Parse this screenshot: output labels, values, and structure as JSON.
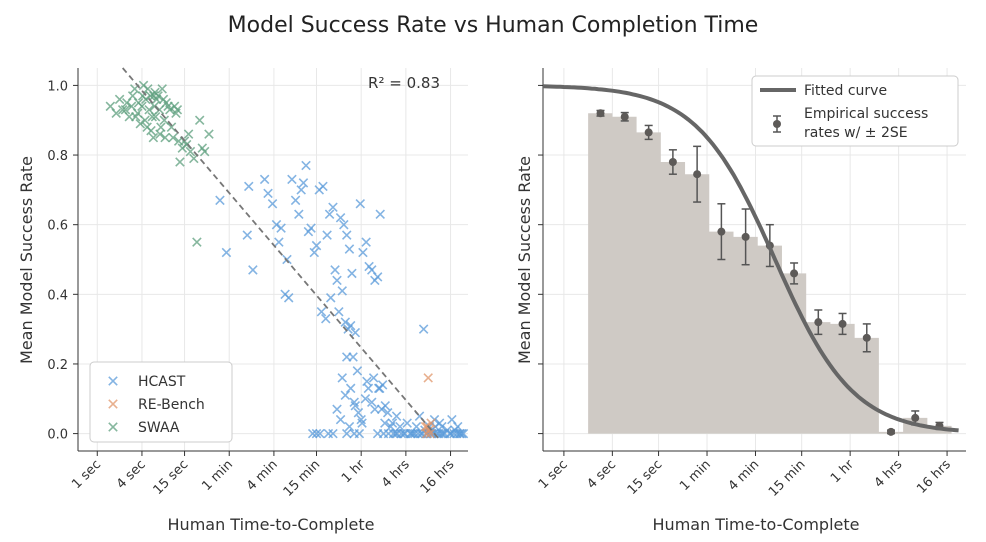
{
  "chart_data": [
    {
      "type": "scatter",
      "suptitle": "Model Success Rate vs Human Completion Time",
      "xlabel": "Human Time-to-Complete",
      "ylabel": "Mean Model Success Rate",
      "x_scale": "log2_seconds",
      "xlim_seconds": [
        0.55,
        99000
      ],
      "ylim": [
        -0.05,
        1.05
      ],
      "x_ticks": [
        {
          "label": "1 sec",
          "seconds": 1
        },
        {
          "label": "4 sec",
          "seconds": 4
        },
        {
          "label": "15 sec",
          "seconds": 15
        },
        {
          "label": "1 min",
          "seconds": 60
        },
        {
          "label": "4 min",
          "seconds": 240
        },
        {
          "label": "15 min",
          "seconds": 900
        },
        {
          "label": "1 hr",
          "seconds": 3600
        },
        {
          "label": "4 hrs",
          "seconds": 14400
        },
        {
          "label": "16 hrs",
          "seconds": 57600
        }
      ],
      "y_ticks": [
        "0.0",
        "0.2",
        "0.4",
        "0.6",
        "0.8",
        "1.0"
      ],
      "y_tick_values": [
        0,
        0.2,
        0.4,
        0.6,
        0.8,
        1.0
      ],
      "r2_label": "R² = 0.83",
      "fit_line": {
        "seconds": [
          2.2,
          42000
        ],
        "y": [
          1.05,
          -0.02
        ]
      },
      "legend_position": "lower-left",
      "series": [
        {
          "name": "HCAST",
          "color": "#5b9bd9",
          "points": [
            [
              45,
              0.67
            ],
            [
              55,
              0.52
            ],
            [
              105,
              0.57
            ],
            [
              125,
              0.47
            ],
            [
              110,
              0.71
            ],
            [
              180,
              0.73
            ],
            [
              200,
              0.69
            ],
            [
              230,
              0.66
            ],
            [
              260,
              0.6
            ],
            [
              280,
              0.55
            ],
            [
              300,
              0.59
            ],
            [
              340,
              0.4
            ],
            [
              380,
              0.39
            ],
            [
              360,
              0.5
            ],
            [
              420,
              0.73
            ],
            [
              470,
              0.67
            ],
            [
              520,
              0.63
            ],
            [
              560,
              0.7
            ],
            [
              600,
              0.72
            ],
            [
              650,
              0.77
            ],
            [
              700,
              0.58
            ],
            [
              760,
              0.59
            ],
            [
              840,
              0.52
            ],
            [
              900,
              0.54
            ],
            [
              980,
              0.7
            ],
            [
              1100,
              0.71
            ],
            [
              1250,
              0.57
            ],
            [
              1350,
              0.63
            ],
            [
              1500,
              0.65
            ],
            [
              1700,
              0.44
            ],
            [
              1900,
              0.62
            ],
            [
              2100,
              0.6
            ],
            [
              2300,
              0.57
            ],
            [
              2500,
              0.53
            ],
            [
              2700,
              0.46
            ],
            [
              1050,
              0.35
            ],
            [
              1200,
              0.33
            ],
            [
              1400,
              0.39
            ],
            [
              1600,
              0.47
            ],
            [
              1800,
              0.35
            ],
            [
              2000,
              0.41
            ],
            [
              2200,
              0.32
            ],
            [
              2400,
              0.3
            ],
            [
              2600,
              0.31
            ],
            [
              2800,
              0.22
            ],
            [
              3000,
              0.29
            ],
            [
              3200,
              0.18
            ],
            [
              3500,
              0.66
            ],
            [
              3800,
              0.52
            ],
            [
              4200,
              0.55
            ],
            [
              4600,
              0.48
            ],
            [
              5000,
              0.47
            ],
            [
              5500,
              0.44
            ],
            [
              6000,
              0.45
            ],
            [
              6500,
              0.63
            ],
            [
              7000,
              0.14
            ],
            [
              7600,
              0.08
            ],
            [
              8200,
              0.06
            ],
            [
              2000,
              0.16
            ],
            [
              2300,
              0.22
            ],
            [
              2600,
              0.13
            ],
            [
              2900,
              0.09
            ],
            [
              3300,
              0.06
            ],
            [
              3700,
              0.03
            ],
            [
              4100,
              0.1
            ],
            [
              4500,
              0.13
            ],
            [
              5000,
              0.09
            ],
            [
              5500,
              0.07
            ],
            [
              6200,
              0.13
            ],
            [
              6800,
              0.07
            ],
            [
              1700,
              0.07
            ],
            [
              1900,
              0.04
            ],
            [
              2200,
              0.11
            ],
            [
              2500,
              0.02
            ],
            [
              3000,
              0.08
            ],
            [
              3600,
              0.04
            ],
            [
              4300,
              0.15
            ],
            [
              5300,
              0.16
            ],
            [
              6400,
              0.13
            ],
            [
              7500,
              0.03
            ],
            [
              9000,
              0.02
            ],
            [
              10500,
              0.0
            ],
            [
              12000,
              0.02
            ],
            [
              13500,
              0.0
            ],
            [
              15000,
              0.03
            ],
            [
              16500,
              0.0
            ],
            [
              18000,
              0.0
            ],
            [
              20000,
              0.02
            ],
            [
              22000,
              0.05
            ],
            [
              24000,
              0.0
            ],
            [
              26000,
              0.01
            ],
            [
              28000,
              0.0
            ],
            [
              30000,
              0.02
            ],
            [
              32000,
              0.0
            ],
            [
              35000,
              0.04
            ],
            [
              38000,
              0.0
            ],
            [
              45000,
              0.0
            ],
            [
              52000,
              0.01
            ],
            [
              60000,
              0.04
            ],
            [
              70000,
              0.0
            ],
            [
              25000,
              0.3
            ],
            [
              800,
              0.0
            ],
            [
              900,
              0.0
            ],
            [
              1000,
              0.0
            ],
            [
              1300,
              0.0
            ],
            [
              1500,
              0.0
            ],
            [
              2300,
              0.0
            ],
            [
              2900,
              0.0
            ],
            [
              3400,
              0.0
            ],
            [
              6000,
              0.0
            ],
            [
              7200,
              0.0
            ],
            [
              8400,
              0.0
            ],
            [
              9800,
              0.0
            ],
            [
              11000,
              0.0
            ],
            [
              12500,
              0.0
            ],
            [
              14000,
              0.0
            ],
            [
              17000,
              0.0
            ],
            [
              19000,
              0.0
            ],
            [
              21000,
              0.0
            ],
            [
              23000,
              0.0
            ],
            [
              27000,
              0.0
            ],
            [
              31000,
              0.0
            ],
            [
              34000,
              0.0
            ],
            [
              40000,
              0.0
            ],
            [
              43000,
              0.0
            ],
            [
              48000,
              0.0
            ],
            [
              56000,
              0.0
            ],
            [
              64000,
              0.0
            ],
            [
              76000,
              0.0
            ],
            [
              82000,
              0.0
            ],
            [
              32000,
              0.01
            ],
            [
              36000,
              0.02
            ],
            [
              41000,
              0.03
            ],
            [
              44000,
              0.02
            ],
            [
              58000,
              0.0
            ],
            [
              66000,
              0.01
            ],
            [
              72000,
              0.02
            ],
            [
              78000,
              0.0
            ],
            [
              86000,
              0.0
            ],
            [
              10800,
              0.05
            ],
            [
              9500,
              0.03
            ]
          ]
        },
        {
          "name": "RE-Bench",
          "color": "#e0956a",
          "points": [
            [
              28800,
              0.16
            ],
            [
              28000,
              0.02
            ],
            [
              29500,
              0.01
            ],
            [
              30500,
              0.0
            ],
            [
              27500,
              0.0
            ],
            [
              31500,
              0.03
            ],
            [
              26500,
              0.02
            ]
          ]
        },
        {
          "name": "SWAA",
          "color": "#5e9f7e",
          "points": [
            [
              1.5,
              0.94
            ],
            [
              1.8,
              0.92
            ],
            [
              2.0,
              0.96
            ],
            [
              2.2,
              0.93
            ],
            [
              2.5,
              0.95
            ],
            [
              2.7,
              0.91
            ],
            [
              3.0,
              0.97
            ],
            [
              3.2,
              0.99
            ],
            [
              3.5,
              0.92
            ],
            [
              3.8,
              0.89
            ],
            [
              4.0,
              0.94
            ],
            [
              4.2,
              1.0
            ],
            [
              4.5,
              0.96
            ],
            [
              4.7,
              0.88
            ],
            [
              5.0,
              0.93
            ],
            [
              5.2,
              0.97
            ],
            [
              5.5,
              0.91
            ],
            [
              5.7,
              0.85
            ],
            [
              6.0,
              0.98
            ],
            [
              6.3,
              0.96
            ],
            [
              6.6,
              0.97
            ],
            [
              6.9,
              0.93
            ],
            [
              7.2,
              0.88
            ],
            [
              7.5,
              0.99
            ],
            [
              7.8,
              0.96
            ],
            [
              8.0,
              0.9
            ],
            [
              8.5,
              0.95
            ],
            [
              9.0,
              0.94
            ],
            [
              9.5,
              0.93
            ],
            [
              10,
              0.88
            ],
            [
              10.5,
              0.85
            ],
            [
              11,
              0.94
            ],
            [
              11.5,
              0.92
            ],
            [
              12,
              0.93
            ],
            [
              12.5,
              0.84
            ],
            [
              13,
              0.78
            ],
            [
              14,
              0.82
            ],
            [
              15,
              0.84
            ],
            [
              16,
              0.83
            ],
            [
              17,
              0.86
            ],
            [
              18,
              0.81
            ],
            [
              20,
              0.79
            ],
            [
              22,
              0.55
            ],
            [
              24,
              0.9
            ],
            [
              26,
              0.82
            ],
            [
              28,
              0.81
            ],
            [
              32,
              0.86
            ],
            [
              4.8,
              0.99
            ],
            [
              5.8,
              0.97
            ],
            [
              3.6,
              0.95
            ],
            [
              2.9,
              0.94
            ],
            [
              4.4,
              0.9
            ],
            [
              5.3,
              0.87
            ],
            [
              6.1,
              0.91
            ],
            [
              7.0,
              0.86
            ],
            [
              8.2,
              0.85
            ],
            [
              3.3,
              0.91
            ],
            [
              2.4,
              0.93
            ],
            [
              4.1,
              0.97
            ],
            [
              5.9,
              0.94
            ]
          ]
        }
      ]
    },
    {
      "type": "bar",
      "xlabel": "Human Time-to-Complete",
      "ylabel": "Mean Model Success Rate",
      "x_scale": "log2_seconds",
      "xlim_seconds": [
        0.55,
        99000
      ],
      "ylim": [
        -0.05,
        1.05
      ],
      "x_ticks": [
        {
          "label": "1 sec",
          "seconds": 1
        },
        {
          "label": "4 sec",
          "seconds": 4
        },
        {
          "label": "15 sec",
          "seconds": 15
        },
        {
          "label": "1 min",
          "seconds": 60
        },
        {
          "label": "4 min",
          "seconds": 240
        },
        {
          "label": "15 min",
          "seconds": 900
        },
        {
          "label": "1 hr",
          "seconds": 3600
        },
        {
          "label": "4 hrs",
          "seconds": 14400
        },
        {
          "label": "16 hrs",
          "seconds": 57600
        }
      ],
      "y_tick_values": [
        0,
        0.2,
        0.4,
        0.6,
        0.8,
        1.0
      ],
      "bar_color": "#cfcac5",
      "bins": [
        {
          "x0_s": 2.0,
          "x1_s": 4.0,
          "value": 0.92,
          "se2": 0.008,
          "mid_s": 2.85
        },
        {
          "x0_s": 4.0,
          "x1_s": 8.0,
          "value": 0.91,
          "se2": 0.012,
          "mid_s": 5.7
        },
        {
          "x0_s": 8.0,
          "x1_s": 16.0,
          "value": 0.865,
          "se2": 0.02,
          "mid_s": 11.3
        },
        {
          "x0_s": 16.0,
          "x1_s": 32.0,
          "value": 0.78,
          "se2": 0.035,
          "mid_s": 22.6
        },
        {
          "x0_s": 32.0,
          "x1_s": 64.0,
          "value": 0.745,
          "se2": 0.08,
          "mid_s": 45.2
        },
        {
          "x0_s": 64.0,
          "x1_s": 128.0,
          "value": 0.58,
          "se2": 0.08,
          "mid_s": 90.5
        },
        {
          "x0_s": 128.0,
          "x1_s": 256.0,
          "value": 0.565,
          "se2": 0.08,
          "mid_s": 181
        },
        {
          "x0_s": 256.0,
          "x1_s": 512.0,
          "value": 0.54,
          "se2": 0.06,
          "mid_s": 362
        },
        {
          "x0_s": 512.0,
          "x1_s": 1024.0,
          "value": 0.46,
          "se2": 0.03,
          "mid_s": 724
        },
        {
          "x0_s": 1024.0,
          "x1_s": 2048.0,
          "value": 0.32,
          "se2": 0.035,
          "mid_s": 1448
        },
        {
          "x0_s": 2048.0,
          "x1_s": 4096.0,
          "value": 0.315,
          "se2": 0.03,
          "mid_s": 2896
        },
        {
          "x0_s": 4096.0,
          "x1_s": 8192.0,
          "value": 0.275,
          "se2": 0.04,
          "mid_s": 5793
        },
        {
          "x0_s": 8192.0,
          "x1_s": 16384.0,
          "value": 0.005,
          "se2": 0.005,
          "mid_s": 11585
        },
        {
          "x0_s": 16384.0,
          "x1_s": 32768.0,
          "value": 0.045,
          "se2": 0.02,
          "mid_s": 23170
        },
        {
          "x0_s": 32768.0,
          "x1_s": 65536.0,
          "value": 0.022,
          "se2": 0.01,
          "mid_s": 46341
        }
      ],
      "fitted_curve": {
        "x50_seconds": 420,
        "slope": 0.62,
        "span_seconds": [
          0.55,
          80000
        ]
      },
      "legend_position": "top-right",
      "legend": [
        {
          "label": "Fitted curve"
        },
        {
          "label": "Empirical success"
        },
        {
          "label": "rates w/ ± 2SE"
        }
      ]
    }
  ]
}
